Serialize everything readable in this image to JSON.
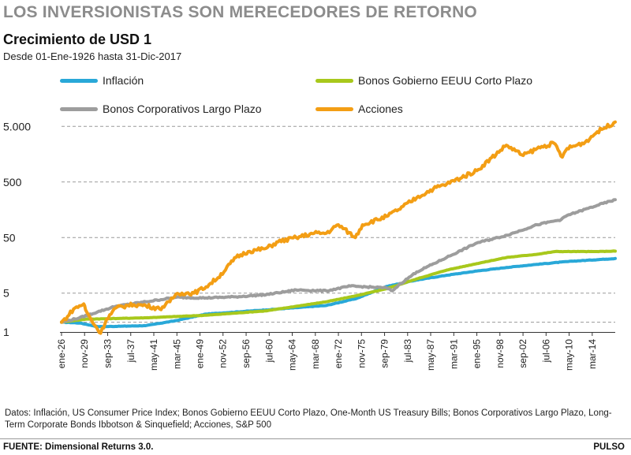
{
  "headline": "LOS INVERSIONISTAS SON MERECEDORES DE RETORNO",
  "notes": "Datos: Inflación, US Consumer Price Index; Bonos Gobierno EEUU Corto Plazo, One-Month US Treasury Bills; Bonos Corporativos Largo Plazo, Long-Term Corporate Bonds Ibbotson & Sinquefield; Acciones, S&P 500",
  "source": "FUENTE: Dimensional Returns 3.0.",
  "brand": "PULSO",
  "chart_data": {
    "type": "line",
    "title": "Crecimiento de USD 1",
    "subtitle": "Desde 01-Ene-1926 hasta 31-Dic-2017",
    "y_scale": "log",
    "ylim": [
      1,
      7000
    ],
    "y_ticks": [
      1,
      5,
      50,
      500,
      5000
    ],
    "y_tick_labels": [
      "1",
      "5",
      "50",
      "500",
      "5.000"
    ],
    "y_ref_gridlines": [
      1.5
    ],
    "xlim": [
      1926.0,
      2017.99
    ],
    "x_tick_labels": [
      "ene-26",
      "nov-29",
      "sep-33",
      "jul-37",
      "may-41",
      "mar-45",
      "ene-49",
      "nov-52",
      "sep-56",
      "jul-60",
      "may-64",
      "mar-68",
      "ene-72",
      "nov-75",
      "sep-79",
      "jul-83",
      "may-87",
      "mar-91",
      "ene-95",
      "nov-98",
      "sep-02",
      "jul-06",
      "may-10",
      "mar-14"
    ],
    "x_tick_values": [
      1926.0,
      1929.83,
      1933.67,
      1937.5,
      1941.33,
      1945.17,
      1949.0,
      1952.83,
      1956.67,
      1960.5,
      1964.33,
      1968.17,
      1972.0,
      1975.83,
      1979.67,
      1983.5,
      1987.33,
      1991.17,
      1995.0,
      1998.83,
      2002.67,
      2006.5,
      2010.33,
      2014.17
    ],
    "grid": "horizontal-dashed",
    "legend_position": "top",
    "series": [
      {
        "name": "Inflación",
        "color": "#29a8d8",
        "x": [
          1926,
          1929,
          1932,
          1933,
          1940,
          1945,
          1950,
          1960,
          1970,
          1975,
          1980,
          1985,
          1990,
          1995,
          2000,
          2005,
          2010,
          2017.99
        ],
        "y": [
          1.5,
          1.45,
          1.25,
          1.25,
          1.3,
          1.6,
          2.1,
          2.5,
          3.0,
          4.0,
          6.6,
          8.6,
          10.5,
          12.5,
          14.5,
          16.5,
          18.5,
          21.0
        ]
      },
      {
        "name": "Bonos Gobierno EEUU Corto Plazo",
        "color": "#a8c81c",
        "x": [
          1926,
          1930,
          1940,
          1950,
          1960,
          1965,
          1970,
          1975,
          1980,
          1985,
          1990,
          1995,
          2000,
          2005,
          2008,
          2010,
          2015,
          2017.99
        ],
        "y": [
          1.5,
          1.7,
          1.8,
          2.0,
          2.4,
          2.9,
          3.5,
          4.5,
          6.0,
          9.0,
          13.0,
          17.0,
          22.0,
          25.0,
          28.0,
          28.0,
          28.0,
          28.5
        ]
      },
      {
        "name": "Bonos Corporativos Largo Plazo",
        "color": "#9d9d9d",
        "x": [
          1926,
          1929,
          1932,
          1935,
          1940,
          1945,
          1950,
          1955,
          1960,
          1965,
          1970,
          1974,
          1980,
          1981,
          1982,
          1985,
          1990,
          1995,
          2000,
          2005,
          2008,
          2009,
          2010,
          2015,
          2017.99
        ],
        "y": [
          1.5,
          1.8,
          2.3,
          2.9,
          3.5,
          4.2,
          4.1,
          4.3,
          4.7,
          5.7,
          5.5,
          6.7,
          6.2,
          5.5,
          7.0,
          12.0,
          22.0,
          40.0,
          55.0,
          85.0,
          100.0,
          105.0,
          125.0,
          190.0,
          240.0
        ]
      },
      {
        "name": "Acciones",
        "color": "#f39e14",
        "x": [
          1926,
          1927,
          1928,
          1929.7,
          1930,
          1931,
          1932.5,
          1933.5,
          1935,
          1937,
          1938,
          1940,
          1942.3,
          1944,
          1945,
          1946,
          1948,
          1950,
          1952,
          1955,
          1957,
          1960,
          1962,
          1965,
          1968,
          1970,
          1972,
          1974.8,
          1976,
          1980,
          1982,
          1985,
          1987.8,
          1990,
          1995,
          1999.9,
          2002.7,
          2005,
          2007.8,
          2009.2,
          2010,
          2013,
          2015,
          2017.99
        ],
        "y": [
          1.5,
          1.9,
          2.6,
          3.2,
          2.5,
          1.6,
          0.95,
          1.7,
          2.7,
          3.0,
          3.1,
          3.0,
          2.6,
          3.5,
          4.8,
          5.0,
          5.0,
          6.5,
          9.5,
          22.0,
          28.0,
          32.0,
          42.0,
          50.0,
          60.0,
          60.0,
          85.0,
          50.0,
          85.0,
          120.0,
          160.0,
          260.0,
          380.0,
          460.0,
          800.0,
          2300.0,
          1500.0,
          2000.0,
          2500.0,
          1400.0,
          2000.0,
          2600.0,
          4000.0,
          6000.0
        ]
      }
    ]
  }
}
